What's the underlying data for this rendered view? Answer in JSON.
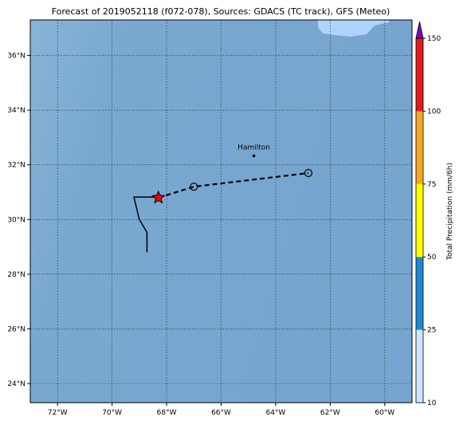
{
  "title": "Forecast of 2019052118 (f072-078), Sources: GDACS (TC track), GFS (Meteo)",
  "map": {
    "xlim": [
      -73,
      -59
    ],
    "ylim": [
      23.3,
      37.3
    ],
    "grid": true,
    "xticks": [
      {
        "value": -72,
        "label": "72°W"
      },
      {
        "value": -70,
        "label": "70°W"
      },
      {
        "value": -68,
        "label": "68°W"
      },
      {
        "value": -66,
        "label": "66°W"
      },
      {
        "value": -64,
        "label": "64°W"
      },
      {
        "value": -62,
        "label": "62°W"
      },
      {
        "value": -60,
        "label": "60°W"
      }
    ],
    "yticks": [
      {
        "value": 24,
        "label": "24°N"
      },
      {
        "value": 26,
        "label": "26°N"
      },
      {
        "value": 28,
        "label": "28°N"
      },
      {
        "value": 30,
        "label": "30°N"
      },
      {
        "value": 32,
        "label": "32°N"
      },
      {
        "value": 34,
        "label": "34°N"
      },
      {
        "value": 36,
        "label": "36°N"
      }
    ],
    "places": [
      {
        "name": "Hamilton",
        "lon": -64.8,
        "lat": 32.33
      }
    ],
    "tracks": [
      {
        "style": "solid",
        "lon": [
          -68.72,
          -68.72,
          -69.0,
          -69.2,
          -68.3
        ],
        "lat": [
          28.8,
          29.53,
          30.0,
          30.82,
          30.82
        ]
      },
      {
        "style": "dashed",
        "lon": [
          -68.3,
          -67.0,
          -62.8
        ],
        "lat": [
          30.8,
          31.2,
          31.7
        ],
        "markers": [
          "star",
          "circle",
          "circle"
        ]
      }
    ]
  },
  "colorbar": {
    "label": "Total Precipitation (mm/6h)",
    "levels": [
      10,
      25,
      50,
      75,
      100,
      150
    ],
    "colors": [
      "#cce6ff",
      "#1f88d6",
      "#ffff00",
      "#f5a623",
      "#e31a1c"
    ],
    "extend_color": "#7b00c8"
  }
}
